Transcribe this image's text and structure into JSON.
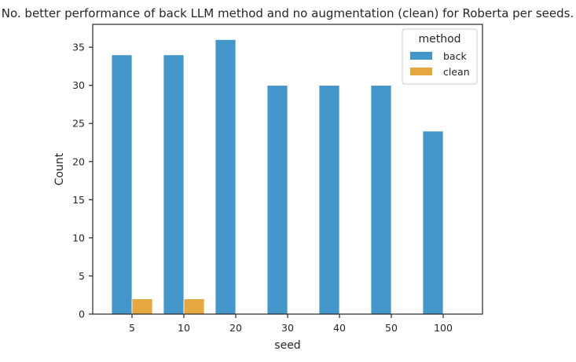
{
  "chart_data": {
    "type": "bar",
    "title": "No. better performance of back LLM method and no augmentation (clean) for Roberta per seeds.",
    "xlabel": "seed",
    "ylabel": "Count",
    "categories": [
      "5",
      "10",
      "20",
      "30",
      "40",
      "50",
      "100"
    ],
    "series": [
      {
        "name": "back",
        "values": [
          34,
          34,
          36,
          30,
          30,
          30,
          24
        ],
        "color": "#4396c9"
      },
      {
        "name": "clean",
        "values": [
          2,
          2,
          0,
          0,
          0,
          0,
          0
        ],
        "color": "#e5a73e"
      }
    ],
    "ylim": [
      0,
      38
    ],
    "yticks": [
      0,
      5,
      10,
      15,
      20,
      25,
      30,
      35
    ],
    "legend": {
      "title": "method",
      "position": "top-right"
    },
    "grid": false
  }
}
